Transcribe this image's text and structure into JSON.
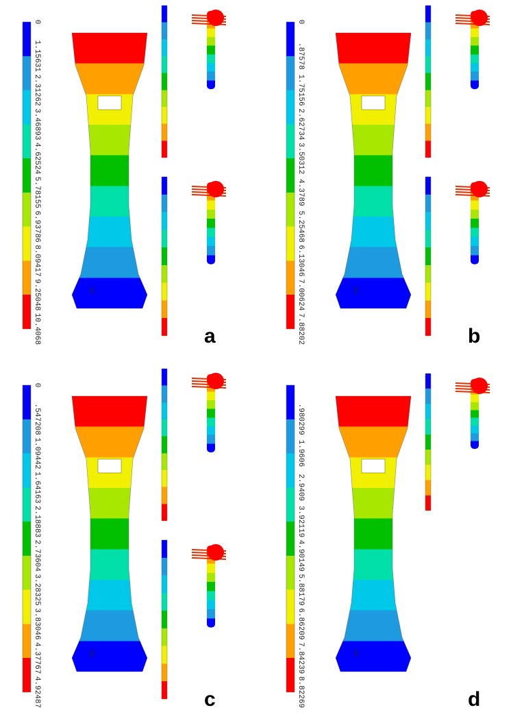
{
  "contour_colors": [
    "#0000ff",
    "#1e9be0",
    "#00c8e8",
    "#00e0a8",
    "#00c000",
    "#a8e800",
    "#f0f000",
    "#ffa000",
    "#ff0000"
  ],
  "panels": [
    {
      "label": "a",
      "node_label": "MN",
      "scale": [
        "0",
        "1.15631",
        "2.31262",
        "3.46893",
        "4.62524",
        "5.78155",
        "6.93786",
        "8.09417",
        "9.25048",
        "10.4068"
      ]
    },
    {
      "label": "b",
      "node_label": "MN",
      "scale": [
        "0",
        ".87578",
        "1.75156",
        "2.62734",
        "3.50312",
        "4.3789",
        "5.25468",
        "6.13046",
        "7.00624",
        "7.88202"
      ]
    },
    {
      "label": "c",
      "node_label": "MN",
      "scale": [
        "0",
        ".547208",
        "1.09442",
        "1.64163",
        "2.18883",
        "2.73604",
        "3.28325",
        "3.83046",
        "4.37767",
        "4.92487"
      ]
    },
    {
      "label": "d",
      "node_label": "MN",
      "scale": [
        ".980299",
        "1.9606",
        "2.9409",
        "3.92119",
        "4.90149",
        "5.88179",
        "6.86209",
        "7.84239",
        "8.82269"
      ]
    }
  ]
}
